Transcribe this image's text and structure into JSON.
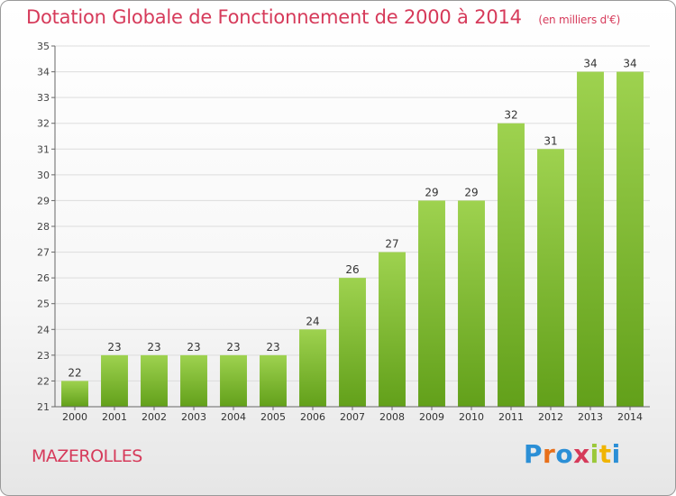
{
  "header": {
    "title": "Dotation Globale de Fonctionnement de 2000 à 2014",
    "subtitle": "(en milliers d'€)"
  },
  "footer": {
    "commune": "MAZEROLLES",
    "logo_text": "Proxiti"
  },
  "colors": {
    "title": "#d63a5a",
    "bar_light": "#9ed24f",
    "bar_dark": "#62a01a",
    "axis": "#666666",
    "grid": "#dddddd"
  },
  "chart_data": {
    "type": "bar",
    "categories": [
      "2000",
      "2001",
      "2002",
      "2003",
      "2004",
      "2005",
      "2006",
      "2007",
      "2008",
      "2009",
      "2010",
      "2011",
      "2012",
      "2013",
      "2014"
    ],
    "values": [
      22,
      23,
      23,
      23,
      23,
      23,
      24,
      26,
      27,
      29,
      29,
      32,
      31,
      34,
      34
    ],
    "ylim": [
      21,
      35
    ],
    "yticks": [
      21,
      22,
      23,
      24,
      25,
      26,
      27,
      28,
      29,
      30,
      31,
      32,
      33,
      34,
      35
    ],
    "grid": true
  }
}
